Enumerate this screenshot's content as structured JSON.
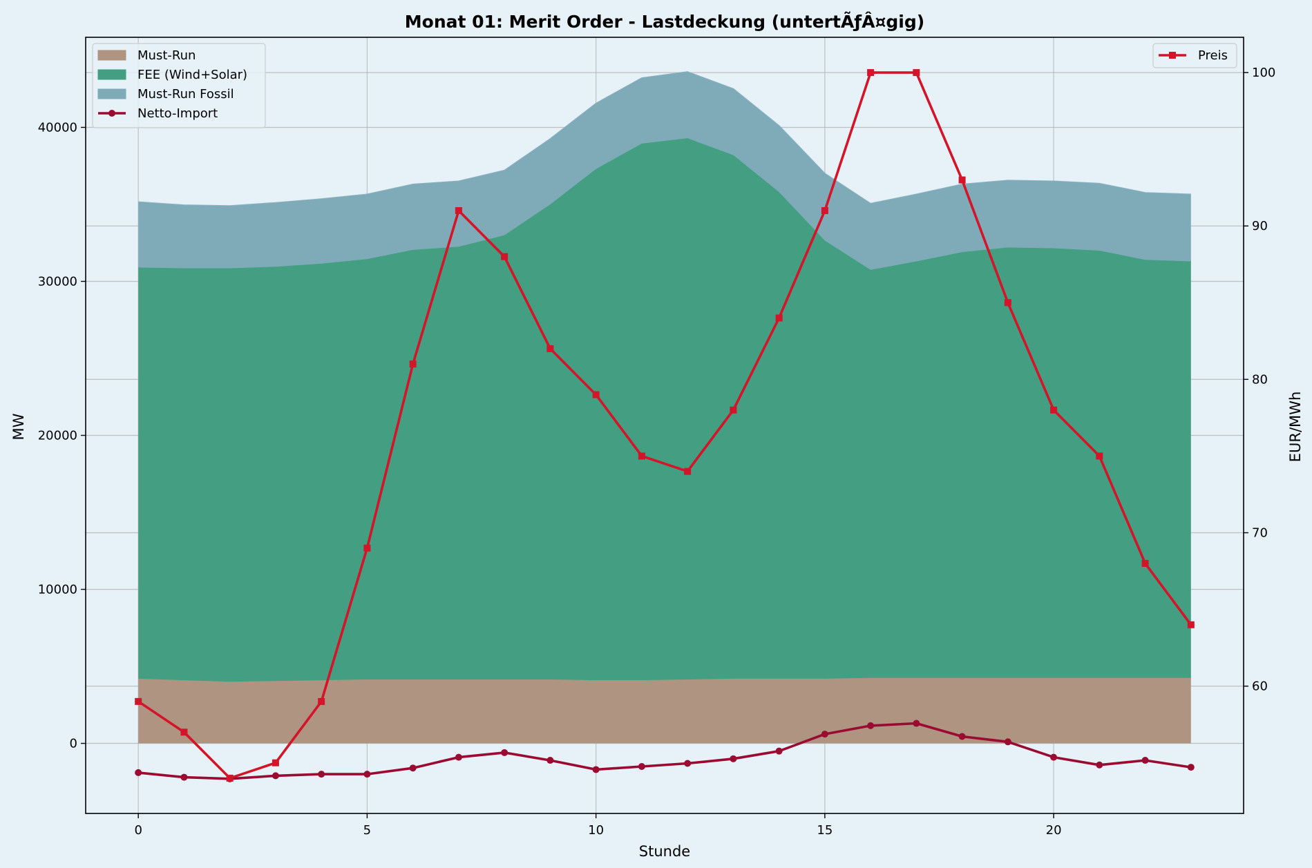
{
  "chart_data": {
    "type": "area",
    "title": "Monat 01: Merit Order - Lastdeckung (untertÃƒÂ¤gig)",
    "xlabel": "Stunde",
    "ylabel": "MW",
    "y2label": "EUR/MWh",
    "xlim": [
      -1.15,
      24.15
    ],
    "ylim": [
      -4550,
      45850
    ],
    "y2lim": [
      51.7,
      102.3
    ],
    "xticks": [
      0,
      5,
      10,
      15,
      20
    ],
    "yticks": [
      0,
      10000,
      20000,
      30000,
      40000
    ],
    "y2ticks": [
      60,
      70,
      80,
      90,
      100
    ],
    "grid": true,
    "legend_left": "top-left",
    "legend_right": "top-right",
    "x": [
      0,
      1,
      2,
      3,
      4,
      5,
      6,
      7,
      8,
      9,
      10,
      11,
      12,
      13,
      14,
      15,
      16,
      17,
      18,
      19,
      20,
      21,
      22,
      23
    ],
    "stack_series": [
      {
        "name": "Must-Run",
        "color": "#b09482",
        "values": [
          4200,
          4100,
          4000,
          4050,
          4100,
          4150,
          4150,
          4150,
          4150,
          4150,
          4100,
          4100,
          4150,
          4200,
          4200,
          4200,
          4250,
          4250,
          4250,
          4250,
          4250,
          4250,
          4250,
          4250
        ]
      },
      {
        "name": "FEE (Wind+Solar)",
        "color": "#449f82",
        "values": [
          26700,
          26750,
          26850,
          26900,
          27050,
          27300,
          27900,
          28100,
          28850,
          30850,
          33200,
          34850,
          35150,
          34000,
          31600,
          28450,
          26500,
          27050,
          27650,
          27950,
          27900,
          27750,
          27150,
          27050
        ]
      },
      {
        "name": "Must-Run Fossil",
        "color": "#7fabb9",
        "values": [
          4250,
          4100,
          4050,
          4150,
          4200,
          4200,
          4250,
          4250,
          4200,
          4250,
          4250,
          4250,
          4300,
          4300,
          4300,
          4350,
          4300,
          4350,
          4400,
          4350,
          4350,
          4350,
          4350,
          4350
        ]
      }
    ],
    "line_series": [
      {
        "name": "Netto-Import",
        "axis": "left",
        "color": "#9b0a31",
        "marker": "circle",
        "values": [
          -1900,
          -2200,
          -2300,
          -2100,
          -2000,
          -2000,
          -1600,
          -900,
          -600,
          -1100,
          -1700,
          -1500,
          -1300,
          -1000,
          -500,
          600,
          1150,
          1300,
          450,
          100,
          -900,
          -1400,
          -1100,
          -1550
        ]
      },
      {
        "name": "Preis",
        "axis": "right",
        "color": "#d41428",
        "marker": "square",
        "values": [
          59,
          57,
          54,
          55,
          59,
          69,
          81,
          91,
          88,
          82,
          79,
          75,
          74,
          78,
          84,
          91,
          100,
          100,
          93,
          85,
          78,
          75,
          68,
          64
        ]
      }
    ]
  }
}
